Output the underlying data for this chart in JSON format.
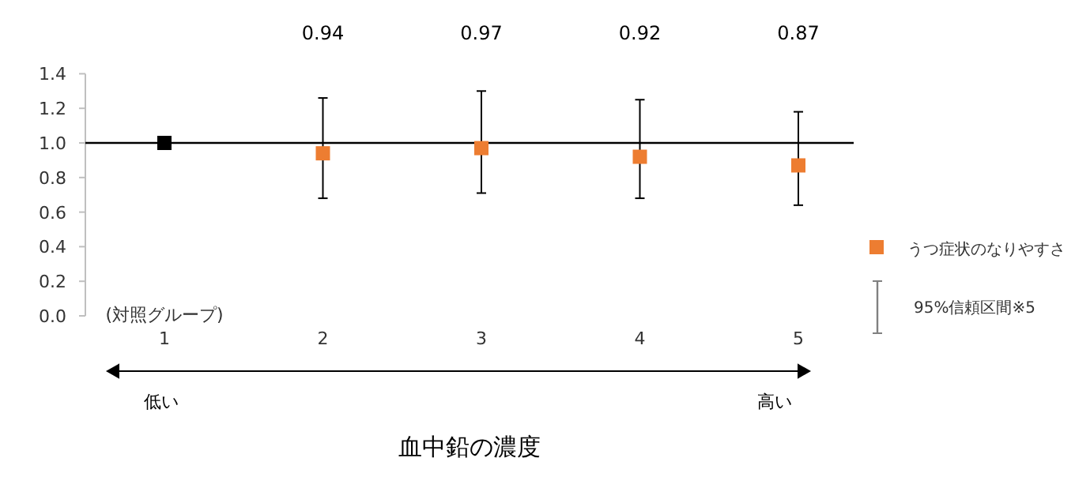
{
  "chart_data": {
    "type": "scatter",
    "categories": [
      "1",
      "2",
      "3",
      "4",
      "5"
    ],
    "xlabel": "血中鉛の濃度",
    "series": [
      {
        "color": "#000000",
        "values": [
          1.0,
          null,
          null,
          null,
          null
        ]
      },
      {
        "name": "うつ症状のなりやすさ",
        "color": "#ed7d31",
        "values": [
          null,
          0.94,
          0.97,
          0.92,
          0.87
        ],
        "errors": [
          null,
          [
            0.68,
            1.26
          ],
          [
            0.71,
            1.3
          ],
          [
            0.68,
            1.25
          ],
          [
            0.64,
            1.18
          ]
        ],
        "value_labels": [
          null,
          "0.94",
          "0.97",
          "0.92",
          "0.87"
        ]
      }
    ],
    "ylim": [
      0,
      1.4
    ],
    "yticks": [
      {
        "value": 0,
        "label": "0.0"
      },
      {
        "value": 0.2,
        "label": "0.2"
      },
      {
        "value": 0.4,
        "label": "0.4"
      },
      {
        "value": 0.6,
        "label": "0.6"
      },
      {
        "value": 0.8,
        "label": "0.8"
      },
      {
        "value": 1.0,
        "label": "1.0"
      },
      {
        "value": 1.2,
        "label": "1.2"
      },
      {
        "value": 1.4,
        "label": "1.4"
      }
    ],
    "ref_lines": [
      {
        "axis": "y",
        "value": 1.0,
        "color": "#000000"
      }
    ],
    "marker": "square",
    "legend": "right",
    "grid": false,
    "annotations": [
      "(対照グループ)",
      "95%信頼区間※5",
      "低い",
      "高い"
    ]
  }
}
